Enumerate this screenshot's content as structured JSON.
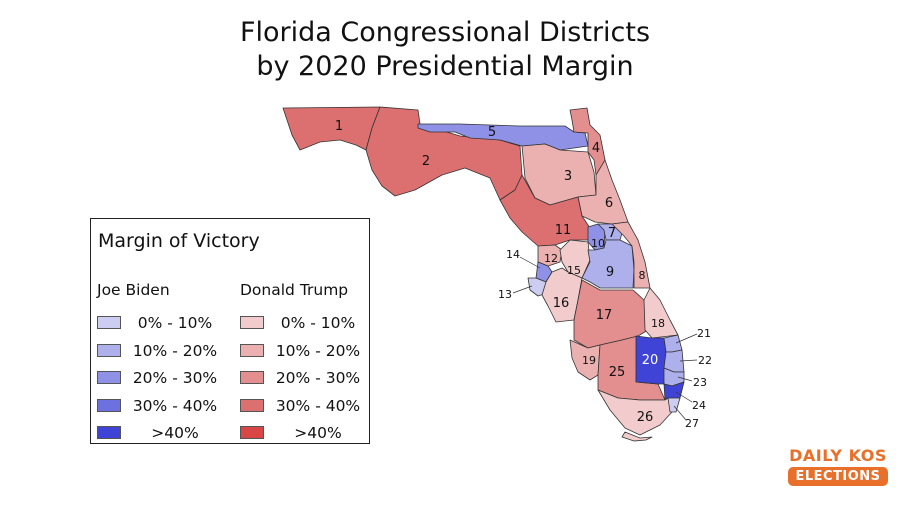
{
  "title": {
    "line1": "Florida Congressional Districts",
    "line2": "by 2020 Presidential Margin"
  },
  "legend": {
    "title": "Margin of Victory",
    "biden_label": "Joe Biden",
    "trump_label": "Donald Trump",
    "bins": [
      "0% - 10%",
      "10% - 20%",
      "20% - 30%",
      "30% - 40%",
      ">40%"
    ],
    "biden_colors": [
      "#cccdf0",
      "#aeb0ec",
      "#8e91e6",
      "#6d70df",
      "#3f44d6"
    ],
    "trump_colors": [
      "#f2cccc",
      "#ebb0b0",
      "#e38f8f",
      "#dc7070",
      "#d94646"
    ]
  },
  "districts": [
    {
      "id": "1",
      "winner": "Trump",
      "bin": 3
    },
    {
      "id": "2",
      "winner": "Trump",
      "bin": 3
    },
    {
      "id": "3",
      "winner": "Trump",
      "bin": 1
    },
    {
      "id": "4",
      "winner": "Trump",
      "bin": 2
    },
    {
      "id": "5",
      "winner": "Biden",
      "bin": 2
    },
    {
      "id": "6",
      "winner": "Trump",
      "bin": 1
    },
    {
      "id": "7",
      "winner": "Biden",
      "bin": 1
    },
    {
      "id": "8",
      "winner": "Trump",
      "bin": 1
    },
    {
      "id": "9",
      "winner": "Biden",
      "bin": 1
    },
    {
      "id": "10",
      "winner": "Biden",
      "bin": 2
    },
    {
      "id": "11",
      "winner": "Trump",
      "bin": 3
    },
    {
      "id": "12",
      "winner": "Trump",
      "bin": 1
    },
    {
      "id": "13",
      "winner": "Biden",
      "bin": 0
    },
    {
      "id": "14",
      "winner": "Biden",
      "bin": 2
    },
    {
      "id": "15",
      "winner": "Trump",
      "bin": 0
    },
    {
      "id": "16",
      "winner": "Trump",
      "bin": 0
    },
    {
      "id": "17",
      "winner": "Trump",
      "bin": 2
    },
    {
      "id": "18",
      "winner": "Trump",
      "bin": 0
    },
    {
      "id": "19",
      "winner": "Trump",
      "bin": 1
    },
    {
      "id": "20",
      "winner": "Biden",
      "bin": 4
    },
    {
      "id": "21",
      "winner": "Biden",
      "bin": 1
    },
    {
      "id": "22",
      "winner": "Biden",
      "bin": 1
    },
    {
      "id": "23",
      "winner": "Biden",
      "bin": 1
    },
    {
      "id": "24",
      "winner": "Biden",
      "bin": 4
    },
    {
      "id": "25",
      "winner": "Trump",
      "bin": 2
    },
    {
      "id": "26",
      "winner": "Trump",
      "bin": 0
    },
    {
      "id": "27",
      "winner": "Biden",
      "bin": 0
    }
  ],
  "logo": {
    "line1": "DAILY KOS",
    "line2": "ELECTIONS"
  }
}
